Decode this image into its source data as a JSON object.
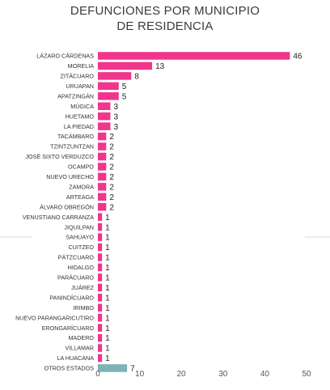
{
  "chart_data": {
    "type": "bar",
    "orientation": "horizontal",
    "title_line1": "DEFUNCIONES POR MUNICIPIO",
    "title_line2": "DE RESIDENCIA",
    "categories": [
      "LÁZARO CÁRDENAS",
      "MORELIA",
      "ZITÁCUARO",
      "URUAPAN",
      "APATZINGÁN",
      "MÚGICA",
      "HUETAMO",
      "LA PIEDAD",
      "TACÁMBARO",
      "TZINTZUNTZAN",
      "JOSÉ SIXTO VERDUZCO",
      "OCAMPO",
      "NUEVO URECHO",
      "ZAMORA",
      "ARTEAGA",
      "ÁLVARO OBREGÓN",
      "VENUSTIANO CARRANZA",
      "JIQUILPAN",
      "SAHUAYO",
      "CUITZEO",
      "PÁTZCUARO",
      "HIDALGO",
      "PARÁCUARO",
      "JUÁREZ",
      "PANINDÍCUARO",
      "IRIMBO",
      "NUEVO PARANGARICUTIRO",
      "ERONGARÍCUARO",
      "MADERO",
      "VILLAMAR",
      "LA HUACANA",
      "OTROS ESTADOS"
    ],
    "values": [
      46,
      13,
      8,
      5,
      5,
      3,
      3,
      3,
      2,
      2,
      2,
      2,
      2,
      2,
      2,
      2,
      1,
      1,
      1,
      1,
      1,
      1,
      1,
      1,
      1,
      1,
      1,
      1,
      1,
      1,
      1,
      7
    ],
    "bar_colors": {
      "default": "#f0358d",
      "last": "#7bb3b7"
    },
    "xlim": [
      0,
      50
    ],
    "xticks": [
      0,
      10,
      20,
      30,
      40,
      50
    ],
    "grid": false,
    "legend": "none"
  }
}
